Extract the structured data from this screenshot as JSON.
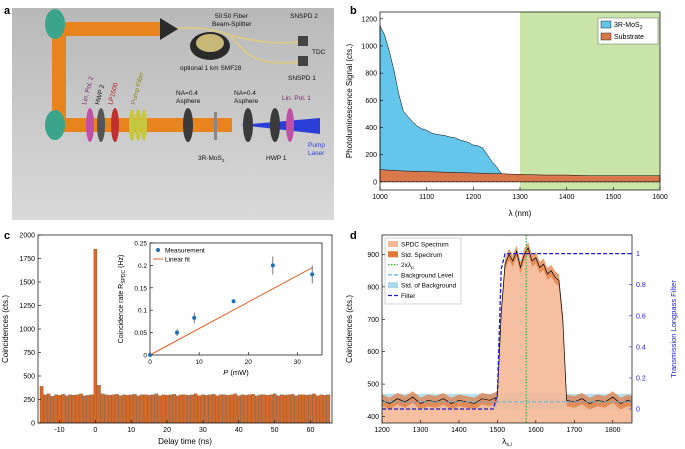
{
  "panel_letters": {
    "a": "a",
    "b": "b",
    "c": "c",
    "d": "d"
  },
  "setup": {
    "fiber_splitter": "50:50 Fiber",
    "fiber_splitter_2": "Beam-Splitter",
    "snspd2": "SNSPD 2",
    "snspd1": "SNSPD 1",
    "tdc": "TDC",
    "optional_fiber": "optional 1 km SMF28",
    "lin_pol2": "Lin. Pol. 2",
    "hwp2": "HWP 2",
    "lp1500": "LP1500",
    "pump_filter": "Pump Filter",
    "na_left": "NA=0.4",
    "asphere_left": "Asphere",
    "na_right": "NA=0.4",
    "asphere_right": "Asphere",
    "lin_pol1": "Lin. Pol. 1",
    "sample": "3R-MoS",
    "sample_sub": "2",
    "hwp1": "HWP 1",
    "pump": "Pump",
    "laser": "Laser",
    "colors": {
      "beam_orange": "#e8841e",
      "beam_blue": "#2a3fd8",
      "fiber": "#d9c98a"
    }
  },
  "chart_data": [
    {
      "id": "b",
      "type": "area",
      "xlabel": "λ (nm)",
      "ylabel": "Photoluminescence Signal (cts.)",
      "xlim": [
        1000,
        1600
      ],
      "ylim": [
        -60,
        1250
      ],
      "xticks": [
        1000,
        1100,
        1200,
        1300,
        1400,
        1500,
        1600
      ],
      "yticks": [
        0,
        200,
        400,
        600,
        800,
        1000,
        1200
      ],
      "highlight_range": [
        1300,
        1600
      ],
      "legend_position": "top-right",
      "series": [
        {
          "name": "3R-MoS",
          "name_sub": "2",
          "color": "#63c6ea",
          "x": [
            1000,
            1010,
            1020,
            1030,
            1040,
            1050,
            1060,
            1070,
            1080,
            1090,
            1100,
            1110,
            1120,
            1130,
            1140,
            1150,
            1160,
            1170,
            1180,
            1190,
            1200,
            1210,
            1220,
            1230,
            1240,
            1250,
            1260,
            1270,
            1280,
            1290,
            1300,
            1350,
            1400,
            1450,
            1500,
            1550,
            1600
          ],
          "y": [
            1150,
            1080,
            960,
            820,
            650,
            520,
            480,
            440,
            410,
            390,
            380,
            360,
            350,
            345,
            340,
            330,
            325,
            310,
            300,
            290,
            270,
            265,
            250,
            200,
            150,
            110,
            60,
            40,
            30,
            25,
            20,
            15,
            15,
            15,
            15,
            15,
            15
          ]
        },
        {
          "name": "Substrate",
          "color": "#d9784a",
          "x": [
            1000,
            1050,
            1100,
            1150,
            1200,
            1250,
            1300,
            1350,
            1400,
            1450,
            1500,
            1550,
            1600
          ],
          "y": [
            90,
            80,
            75,
            70,
            65,
            60,
            55,
            50,
            50,
            45,
            45,
            45,
            45
          ]
        }
      ]
    },
    {
      "id": "c",
      "type": "bar",
      "xlabel": "Delay time (ns)",
      "ylabel": "Coincidences (cts.)",
      "xlim": [
        -16,
        66
      ],
      "ylim": [
        0,
        2000
      ],
      "xticks": [
        -10,
        0,
        10,
        20,
        30,
        40,
        50,
        60
      ],
      "yticks": [
        0,
        250,
        500,
        750,
        1000,
        1250,
        1500,
        1750,
        2000
      ],
      "bar_color": "#d46a2a",
      "x_start": -15,
      "x_step": 1,
      "values": [
        390,
        300,
        310,
        285,
        300,
        295,
        305,
        290,
        300,
        295,
        300,
        310,
        290,
        295,
        300,
        1850,
        400,
        310,
        300,
        295,
        300,
        305,
        290,
        300,
        295,
        300,
        305,
        290,
        300,
        300,
        295,
        300,
        310,
        290,
        300,
        295,
        300,
        305,
        290,
        300,
        300,
        295,
        300,
        310,
        290,
        300,
        295,
        300,
        305,
        290,
        300,
        300,
        295,
        300,
        310,
        290,
        300,
        295,
        300,
        305,
        290,
        300,
        300,
        295,
        300,
        310,
        290,
        300,
        295,
        300,
        305,
        290,
        300,
        300,
        295,
        300,
        310,
        290,
        300,
        295,
        300
      ]
    },
    {
      "id": "c-inset",
      "type": "scatter",
      "xlabel": "P",
      "xlabel_unit": "(mW)",
      "ylabel": "Coincidence rate R",
      "ylabel_sub": "SPDC",
      "ylabel_unit": "(Hz)",
      "xlim": [
        0,
        35
      ],
      "ylim": [
        0,
        0.25
      ],
      "xticks": [
        0,
        10,
        20,
        30
      ],
      "yticks": [
        0,
        0.05,
        0.1,
        0.15,
        0.2,
        0.25
      ],
      "legend_position": "top-left",
      "series": [
        {
          "name": "Measurement",
          "color": "#1f6fb2",
          "x": [
            0,
            5.5,
            9,
            17,
            25,
            33
          ],
          "y": [
            0,
            0.05,
            0.083,
            0.12,
            0.2,
            0.18
          ],
          "err": [
            0.004,
            0.008,
            0.012,
            0.004,
            0.02,
            0.02
          ]
        },
        {
          "name": "Linear fit",
          "color": "#e0622a",
          "fit_x": [
            0,
            33
          ],
          "fit_y": [
            0,
            0.195
          ]
        }
      ]
    },
    {
      "id": "d",
      "type": "line",
      "xlabel": "λ",
      "xlabel_sub": "s,i",
      "ylabel": "Coincidences (cts.)",
      "y2label": "Transmission Longpass Filter",
      "xlim": [
        1200,
        1850
      ],
      "ylim": [
        380,
        960
      ],
      "y2lim": [
        -0.09,
        1.12
      ],
      "xticks": [
        1200,
        1300,
        1400,
        1500,
        1600,
        1700,
        1800
      ],
      "yticks": [
        400,
        500,
        600,
        700,
        800,
        900
      ],
      "y2ticks": [
        0,
        0.2,
        0.4,
        0.6,
        0.8,
        1
      ],
      "legend_position": "top-left",
      "legend": [
        "SPDC Spectrum",
        "Std. Spectrum",
        "2xλ",
        "Background Level",
        "Std. of Background",
        "Filter"
      ],
      "legend_sub_2": "p",
      "pump_double_x": 1575,
      "background_level": 445,
      "background_std": [
        420,
        470
      ],
      "spectrum_color": "#f4b896",
      "std_color": "#e0783a",
      "filter_color": "#1e1ecc",
      "x": [
        1200,
        1220,
        1240,
        1260,
        1280,
        1300,
        1320,
        1340,
        1360,
        1380,
        1400,
        1420,
        1440,
        1460,
        1480,
        1500,
        1510,
        1520,
        1530,
        1540,
        1550,
        1560,
        1570,
        1580,
        1590,
        1600,
        1610,
        1620,
        1630,
        1640,
        1650,
        1660,
        1670,
        1680,
        1700,
        1720,
        1740,
        1760,
        1780,
        1800,
        1820,
        1840,
        1850
      ],
      "y": [
        450,
        440,
        455,
        445,
        460,
        440,
        450,
        445,
        455,
        440,
        450,
        445,
        440,
        455,
        450,
        460,
        720,
        870,
        900,
        880,
        910,
        860,
        900,
        920,
        880,
        890,
        860,
        870,
        840,
        850,
        830,
        820,
        700,
        450,
        445,
        455,
        440,
        450,
        445,
        460,
        440,
        450,
        445
      ],
      "filter_x": [
        1200,
        1490,
        1500,
        1505,
        1510,
        1520,
        1540,
        1600,
        1700,
        1800,
        1850
      ],
      "filter_y": [
        0,
        0,
        0.1,
        0.5,
        0.9,
        1,
        1,
        1,
        1,
        1,
        1
      ]
    }
  ]
}
